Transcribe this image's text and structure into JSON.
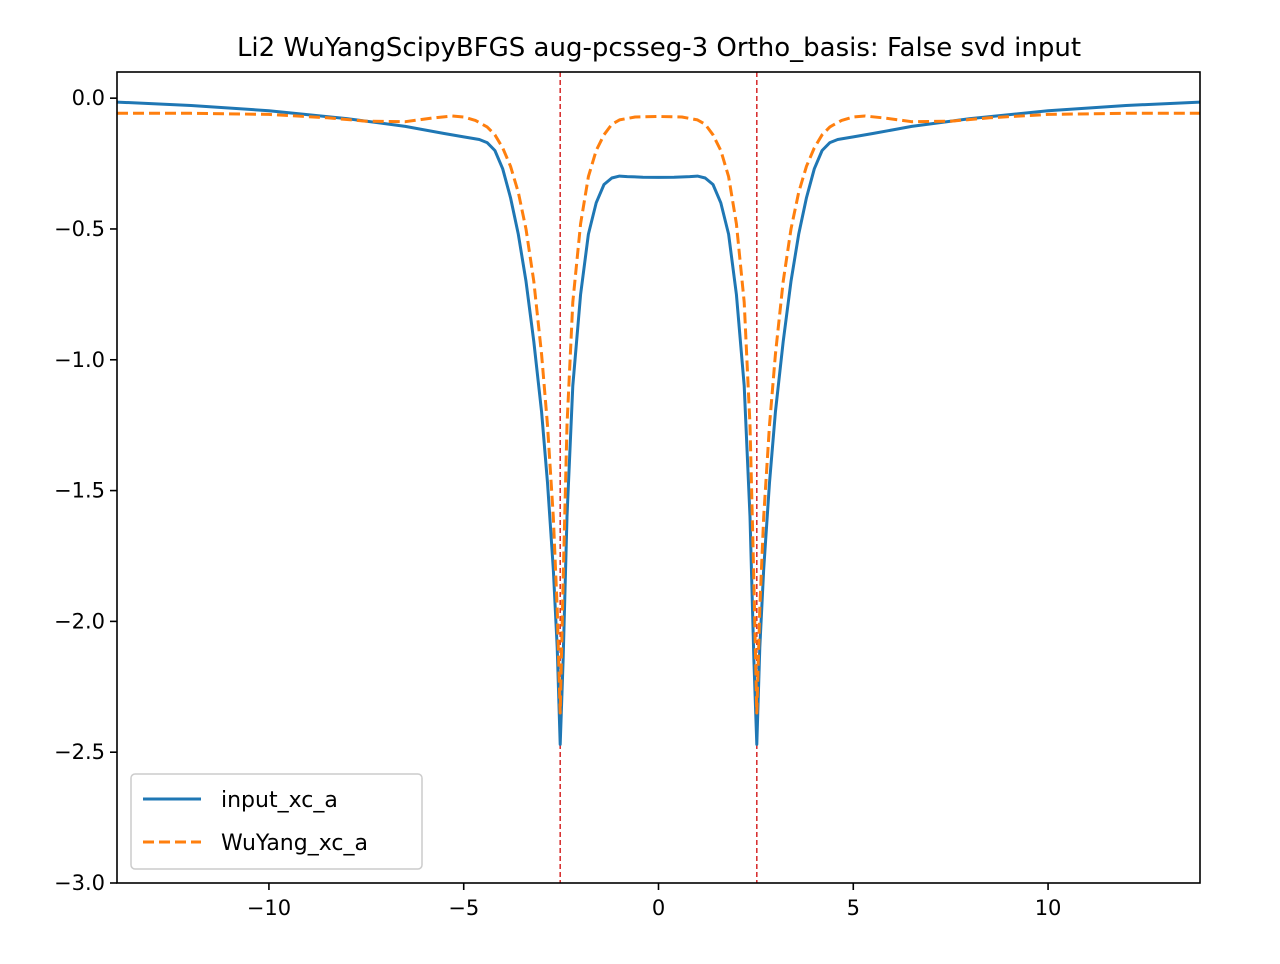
{
  "chart_data": {
    "type": "line",
    "title": "Li2 WuYangScipyBFGS aug-pcsseg-3 Ortho_basis: False svd input",
    "xlabel": "",
    "ylabel": "",
    "xlim": [
      -13.9,
      13.9
    ],
    "ylim": [
      -3.0,
      0.1
    ],
    "x_ticks": [
      -10,
      -5,
      0,
      5,
      10
    ],
    "x_tick_labels": [
      "−10",
      "−5",
      "0",
      "5",
      "10"
    ],
    "y_ticks": [
      0.0,
      -0.5,
      -1.0,
      -1.5,
      -2.0,
      -2.5,
      -3.0
    ],
    "y_tick_labels": [
      "0.0",
      "−0.5",
      "−1.0",
      "−1.5",
      "−2.0",
      "−2.5",
      "−3.0"
    ],
    "grid": false,
    "legend_position": "lower-left",
    "vlines": {
      "x": [
        -2.5233,
        2.5233
      ],
      "color": "#d62728",
      "style": "dashed"
    },
    "series": [
      {
        "name": "input_xc_a",
        "color": "#1f77b4",
        "style": "solid",
        "x": [
          -13.9,
          -12,
          -10,
          -8,
          -6.5,
          -5.5,
          -5,
          -4.6,
          -4.4,
          -4.2,
          -4.0,
          -3.8,
          -3.6,
          -3.4,
          -3.2,
          -3.0,
          -2.85,
          -2.7,
          -2.6,
          -2.5233,
          -2.45,
          -2.35,
          -2.2,
          -2.0,
          -1.8,
          -1.6,
          -1.4,
          -1.2,
          -1.0,
          -0.8,
          -0.4,
          0,
          0.4,
          0.8,
          1.0,
          1.2,
          1.4,
          1.6,
          1.8,
          2.0,
          2.2,
          2.35,
          2.45,
          2.5233,
          2.6,
          2.7,
          2.85,
          3.0,
          3.2,
          3.4,
          3.6,
          3.8,
          4.0,
          4.2,
          4.4,
          4.6,
          5,
          5.5,
          6.5,
          8,
          10,
          12,
          13.9
        ],
        "y": [
          -0.015,
          -0.028,
          -0.048,
          -0.078,
          -0.108,
          -0.135,
          -0.148,
          -0.158,
          -0.17,
          -0.2,
          -0.27,
          -0.38,
          -0.52,
          -0.7,
          -0.93,
          -1.2,
          -1.47,
          -1.8,
          -2.1,
          -2.47,
          -2.15,
          -1.6,
          -1.1,
          -0.75,
          -0.52,
          -0.4,
          -0.33,
          -0.305,
          -0.298,
          -0.3,
          -0.302,
          -0.303,
          -0.302,
          -0.3,
          -0.298,
          -0.305,
          -0.33,
          -0.4,
          -0.52,
          -0.75,
          -1.1,
          -1.6,
          -2.15,
          -2.47,
          -2.1,
          -1.8,
          -1.47,
          -1.2,
          -0.93,
          -0.7,
          -0.52,
          -0.38,
          -0.27,
          -0.2,
          -0.17,
          -0.158,
          -0.148,
          -0.135,
          -0.108,
          -0.078,
          -0.048,
          -0.028,
          -0.015
        ]
      },
      {
        "name": "WuYang_xc_a",
        "color": "#ff7f0e",
        "style": "dashed",
        "x": [
          -13.9,
          -12,
          -10,
          -8.5,
          -7.5,
          -6.5,
          -5.8,
          -5.3,
          -5.0,
          -4.7,
          -4.4,
          -4.2,
          -4.0,
          -3.8,
          -3.6,
          -3.4,
          -3.2,
          -3.0,
          -2.85,
          -2.7,
          -2.6,
          -2.5233,
          -2.45,
          -2.35,
          -2.2,
          -2.0,
          -1.8,
          -1.6,
          -1.4,
          -1.2,
          -1.0,
          -0.6,
          0,
          0.6,
          1.0,
          1.2,
          1.4,
          1.6,
          1.8,
          2.0,
          2.2,
          2.35,
          2.45,
          2.5233,
          2.6,
          2.7,
          2.85,
          3.0,
          3.2,
          3.4,
          3.6,
          3.8,
          4.0,
          4.2,
          4.4,
          4.7,
          5.0,
          5.3,
          5.8,
          6.5,
          7.5,
          8.5,
          10,
          12,
          13.9
        ],
        "y": [
          -0.058,
          -0.058,
          -0.062,
          -0.075,
          -0.088,
          -0.09,
          -0.076,
          -0.068,
          -0.072,
          -0.085,
          -0.11,
          -0.14,
          -0.19,
          -0.26,
          -0.36,
          -0.5,
          -0.7,
          -0.98,
          -1.25,
          -1.6,
          -1.95,
          -2.35,
          -1.85,
          -1.25,
          -0.78,
          -0.48,
          -0.3,
          -0.2,
          -0.14,
          -0.1,
          -0.083,
          -0.072,
          -0.07,
          -0.072,
          -0.083,
          -0.1,
          -0.14,
          -0.2,
          -0.3,
          -0.48,
          -0.78,
          -1.25,
          -1.85,
          -2.35,
          -1.95,
          -1.6,
          -1.25,
          -0.98,
          -0.7,
          -0.5,
          -0.36,
          -0.26,
          -0.19,
          -0.14,
          -0.11,
          -0.085,
          -0.072,
          -0.068,
          -0.076,
          -0.09,
          -0.088,
          -0.075,
          -0.062,
          -0.058,
          -0.058
        ]
      }
    ]
  }
}
